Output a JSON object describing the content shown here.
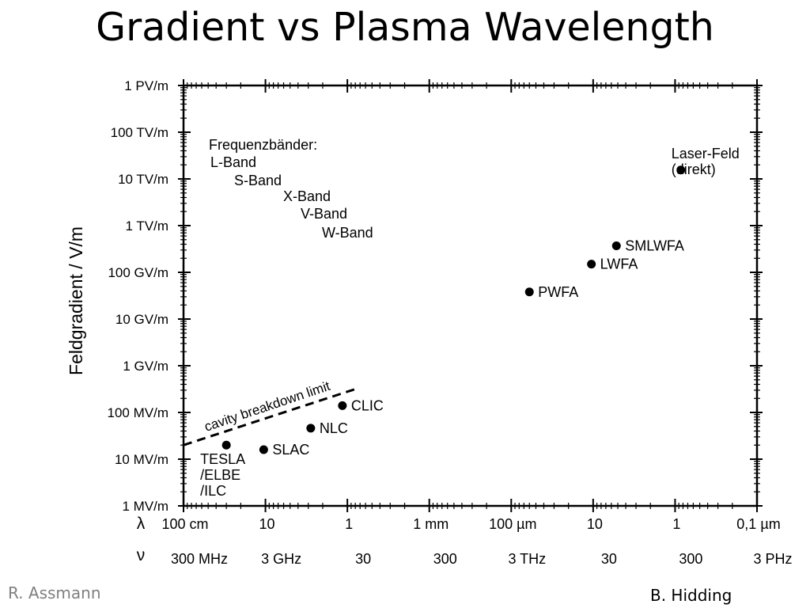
{
  "slide": {
    "title": "Gradient vs Plasma Wavelength",
    "credit_left": "R. Assmann",
    "credit_right": "B. Hidding"
  },
  "chart_data": {
    "type": "scatter",
    "title": "Gradient vs Plasma Wavelength",
    "ylabel": "Feldgradient / V/m",
    "y_scale": "log",
    "ylim": [
      1000000.0,
      1000000000000000.0
    ],
    "y_ticks": [
      {
        "value": 1000000000000000.0,
        "label": "1 PV/m"
      },
      {
        "value": 100000000000000.0,
        "label": "100 TV/m"
      },
      {
        "value": 10000000000000.0,
        "label": "10 TV/m"
      },
      {
        "value": 1000000000000.0,
        "label": "1 TV/m"
      },
      {
        "value": 100000000000.0,
        "label": "100 GV/m"
      },
      {
        "value": 10000000000.0,
        "label": "10 GV/m"
      },
      {
        "value": 1000000000.0,
        "label": "1 GV/m"
      },
      {
        "value": 100000000.0,
        "label": "100 MV/m"
      },
      {
        "value": 10000000.0,
        "label": "10 MV/m"
      },
      {
        "value": 1000000.0,
        "label": "1 MV/m"
      }
    ],
    "x_scale": "log",
    "xlim": [
      1,
      1e-07
    ],
    "x_axis_symbol": "λ",
    "x_ticks": [
      {
        "value": 1,
        "label": "100 cm"
      },
      {
        "value": 0.1,
        "label": "10"
      },
      {
        "value": 0.01,
        "label": "1"
      },
      {
        "value": 0.001,
        "label": "1 mm"
      },
      {
        "value": 0.0001,
        "label": "100 µm"
      },
      {
        "value": 1e-05,
        "label": "10"
      },
      {
        "value": 1e-06,
        "label": "1"
      },
      {
        "value": 1e-07,
        "label": "0,1 µm"
      }
    ],
    "freq_axis_symbol": "ν",
    "freq_ticks": [
      {
        "value": 1,
        "label": "300 MHz"
      },
      {
        "value": 0.1,
        "label": "3 GHz"
      },
      {
        "value": 0.01,
        "label": "30"
      },
      {
        "value": 0.001,
        "label": "300"
      },
      {
        "value": 0.0001,
        "label": "3 THz"
      },
      {
        "value": 1e-05,
        "label": "30"
      },
      {
        "value": 1e-06,
        "label": "300"
      },
      {
        "value": 1e-07,
        "label": "3 PHz"
      }
    ],
    "points": [
      {
        "label": "TESLA\n/ELBE\n/ILC",
        "x": 0.3,
        "y": 20000000.0,
        "label_pos": "below"
      },
      {
        "label": "SLAC",
        "x": 0.105,
        "y": 16000000.0,
        "label_pos": "right"
      },
      {
        "label": "NLC",
        "x": 0.028,
        "y": 46000000.0,
        "label_pos": "right"
      },
      {
        "label": "CLIC",
        "x": 0.0115,
        "y": 140000000.0,
        "label_pos": "right"
      },
      {
        "label": "PWFA",
        "x": 6e-05,
        "y": 38000000000.0,
        "label_pos": "right"
      },
      {
        "label": "LWFA",
        "x": 1.05e-05,
        "y": 150000000000.0,
        "label_pos": "right"
      },
      {
        "label": "SMLWFA",
        "x": 5.2e-06,
        "y": 370000000000.0,
        "label_pos": "right"
      },
      {
        "label": "Laser-Feld\n(direkt)",
        "x": 8.5e-07,
        "y": 15500000000000.0,
        "label_pos": "above-right"
      }
    ],
    "limit_line": {
      "label": "cavity breakdown limit",
      "style": "dashed",
      "from": {
        "x": 1,
        "y": 20000000.0
      },
      "to": {
        "x": 0.01,
        "y": 300000000.0
      }
    },
    "annotations": {
      "bands_heading": "Frequenzbänder:",
      "bands": [
        "L-Band",
        "S-Band",
        "X-Band",
        "V-Band",
        "W-Band"
      ]
    },
    "grid": false,
    "legend": "none"
  }
}
